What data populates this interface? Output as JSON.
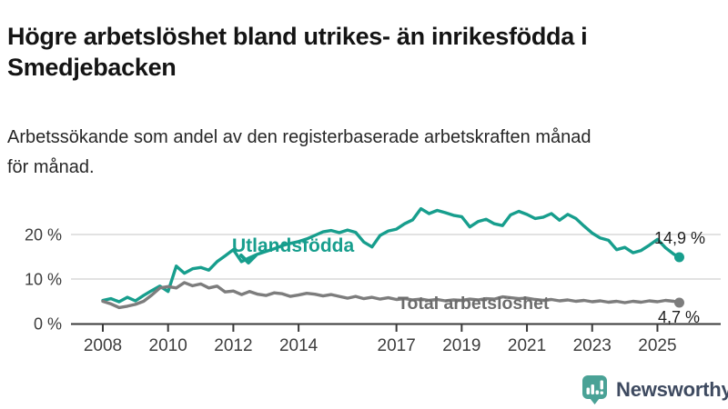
{
  "header": {
    "title_lines": [
      "Högre arbetslöshet bland utrikes- än inrikesfödda i",
      "Smedjebacken"
    ],
    "subtitle_lines": [
      "Arbetssökande som andel av den registerbaserade arbetskraften månad",
      "för månad."
    ]
  },
  "footer": {
    "brand": "Newsworthy"
  },
  "colors": {
    "foreign_born_line": "#179e8d",
    "total_line": "#7d7d7d",
    "total_label": "#6d6d6d",
    "axis": "#3a3a3a",
    "tick_text": "#3d3d3d",
    "grid": "#d9d9d9",
    "end_label_text": "#1f1f1f",
    "logo_teal": "#4aa296",
    "logo_text": "#3e4a60"
  },
  "chart_data": {
    "type": "line",
    "title": "Högre arbetslöshet bland utrikes- än inrikesfödda i Smedjebacken",
    "subtitle": "Arbetssökande som andel av den registerbaserade arbetskraften månad för månad.",
    "unit": "%",
    "ylim": [
      0,
      28
    ],
    "grid": "horizontal",
    "yticks": [
      {
        "label": "0 %",
        "value": 0
      },
      {
        "label": "10 %",
        "value": 10
      },
      {
        "label": "20 %",
        "value": 20
      }
    ],
    "xticks": [
      {
        "label": "2008",
        "value": 2008
      },
      {
        "label": "2010",
        "value": 2010
      },
      {
        "label": "2012",
        "value": 2012
      },
      {
        "label": "2014",
        "value": 2014
      },
      {
        "label": "2017",
        "value": 2017
      },
      {
        "label": "2019",
        "value": 2019
      },
      {
        "label": "2021",
        "value": 2021
      },
      {
        "label": "2023",
        "value": 2023
      },
      {
        "label": "2025",
        "value": 2025
      }
    ],
    "x": [
      2008,
      2008.25,
      2008.5,
      2008.75,
      2009,
      2009.25,
      2009.5,
      2009.75,
      2010,
      2010.25,
      2010.5,
      2010.75,
      2011,
      2011.25,
      2011.5,
      2011.75,
      2012,
      2012.25,
      2012.5,
      2012.75,
      2013,
      2013.25,
      2013.5,
      2013.75,
      2014,
      2014.25,
      2014.5,
      2014.75,
      2015,
      2015.25,
      2015.5,
      2015.75,
      2016,
      2016.25,
      2016.5,
      2016.75,
      2017,
      2017.25,
      2017.5,
      2017.75,
      2018,
      2018.25,
      2018.5,
      2018.75,
      2019,
      2019.25,
      2019.5,
      2019.75,
      2020,
      2020.25,
      2020.5,
      2020.75,
      2021,
      2021.25,
      2021.5,
      2021.75,
      2022,
      2022.25,
      2022.5,
      2022.75,
      2023,
      2023.25,
      2023.5,
      2023.75,
      2024,
      2024.25,
      2024.5,
      2024.75,
      2025,
      2025.25,
      2025.5,
      2025.67
    ],
    "series": [
      {
        "name": "Utlandsfödda",
        "end_label": "14,9 %",
        "last_value": 14.9,
        "values": [
          5.2,
          5.6,
          4.9,
          5.9,
          5.1,
          6.3,
          7.4,
          8.4,
          7.2,
          12.9,
          11.3,
          12.3,
          12.6,
          12.0,
          13.9,
          15.2,
          16.6,
          13.9,
          14.8,
          15.6,
          16.2,
          16.8,
          17.5,
          18.0,
          18.4,
          19.0,
          19.8,
          20.6,
          20.9,
          20.4,
          21.0,
          20.5,
          18.3,
          17.2,
          19.8,
          20.8,
          21.2,
          22.4,
          23.3,
          25.8,
          24.7,
          25.4,
          24.9,
          24.3,
          24.0,
          21.7,
          22.9,
          23.4,
          22.4,
          22.0,
          24.4,
          25.2,
          24.5,
          23.6,
          23.9,
          24.7,
          23.2,
          24.5,
          23.6,
          21.9,
          20.3,
          19.2,
          18.7,
          16.6,
          17.1,
          15.9,
          16.4,
          17.6,
          18.9,
          17.0,
          15.6,
          14.9
        ]
      },
      {
        "name": "Total arbetslöshet",
        "end_label": "4,7 %",
        "last_value": 4.7,
        "values": [
          5.0,
          4.4,
          3.6,
          3.9,
          4.3,
          5.0,
          6.4,
          8.0,
          8.3,
          8.0,
          9.2,
          8.5,
          8.9,
          8.0,
          8.4,
          7.1,
          7.3,
          6.5,
          7.2,
          6.6,
          6.3,
          6.9,
          6.7,
          6.1,
          6.4,
          6.8,
          6.6,
          6.2,
          6.5,
          6.1,
          5.7,
          6.1,
          5.6,
          5.9,
          5.5,
          5.8,
          5.4,
          5.6,
          5.3,
          5.5,
          5.2,
          5.4,
          5.1,
          5.3,
          5.2,
          5.5,
          5.3,
          5.6,
          5.5,
          6.0,
          5.8,
          5.6,
          5.7,
          5.4,
          5.2,
          5.4,
          5.1,
          5.3,
          5.0,
          5.2,
          4.9,
          5.1,
          4.8,
          5.0,
          4.7,
          5.0,
          4.8,
          5.1,
          4.9,
          5.2,
          5.0,
          4.7
        ]
      }
    ],
    "legend_position": "inline-labels"
  }
}
